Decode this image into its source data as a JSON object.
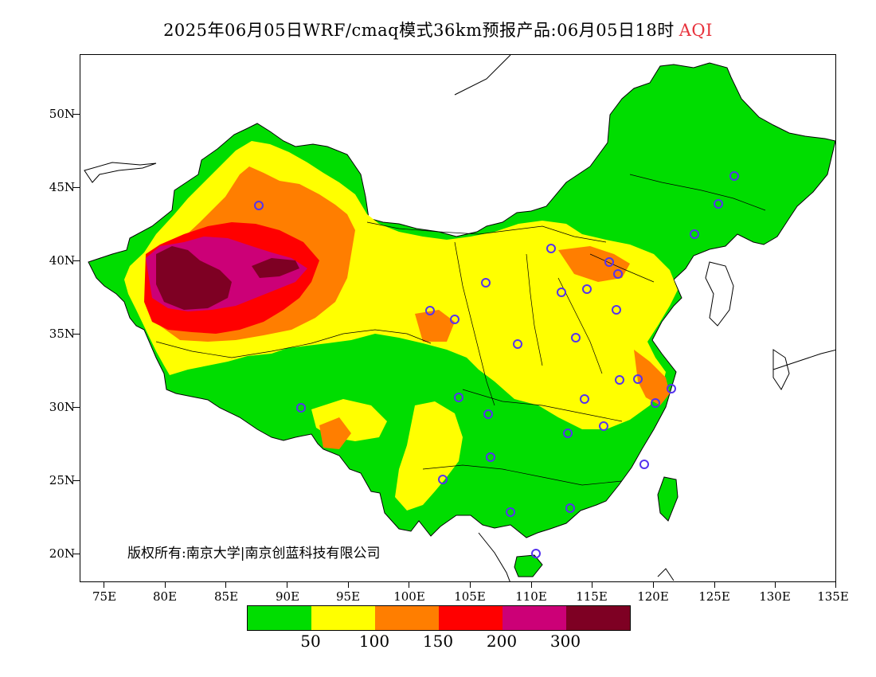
{
  "title": {
    "main": "2025年06月05日WRF/cmaq模式36km预报产品:06月05日18时",
    "variable": "AQI"
  },
  "axes": {
    "lat_labels": [
      "50N",
      "45N",
      "40N",
      "35N",
      "30N",
      "25N",
      "20N"
    ],
    "lon_labels": [
      "75E",
      "80E",
      "85E",
      "90E",
      "95E",
      "100E",
      "105E",
      "110E",
      "115E",
      "120E",
      "125E",
      "130E",
      "135E"
    ]
  },
  "copyright": "版权所有:南京大学|南京创蓝科技有限公司",
  "legend": {
    "colors": [
      "#00dd00",
      "#ffff00",
      "#ff7e00",
      "#ff0000",
      "#cc0077",
      "#7e0023"
    ],
    "labels": [
      "50",
      "100",
      "150",
      "200",
      "300"
    ]
  }
}
